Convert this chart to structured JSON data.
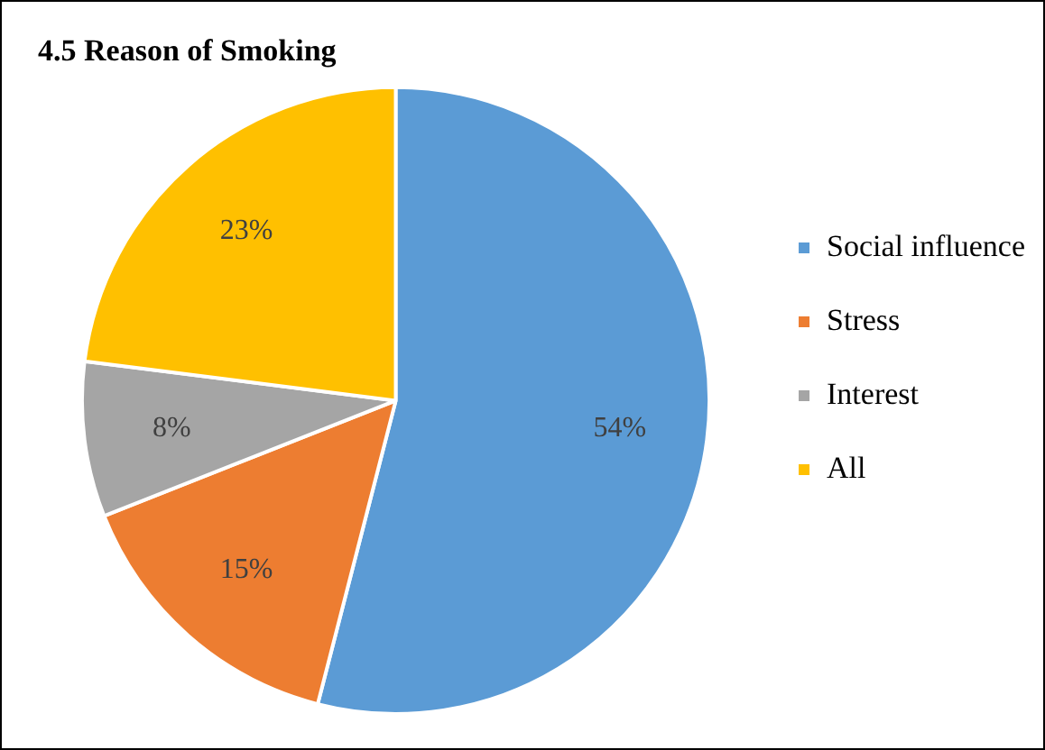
{
  "chart_data": {
    "type": "pie",
    "title": "4.5 Reason of Smoking",
    "categories": [
      "Social influence",
      "Stress",
      "Interest",
      "All"
    ],
    "values": [
      54,
      15,
      8,
      23
    ],
    "value_labels": [
      "54%",
      "15%",
      "8%",
      "23%"
    ],
    "colors": [
      "#5b9bd5",
      "#ed7d31",
      "#a5a5a5",
      "#ffc000"
    ],
    "legend": "right"
  }
}
